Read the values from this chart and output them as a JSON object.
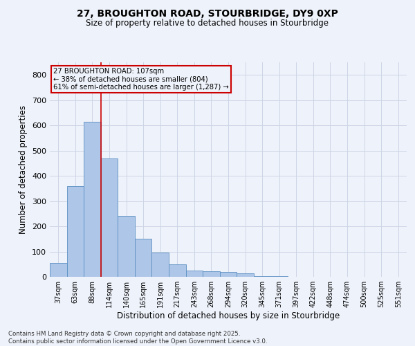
{
  "title_line1": "27, BROUGHTON ROAD, STOURBRIDGE, DY9 0XP",
  "title_line2": "Size of property relative to detached houses in Stourbridge",
  "xlabel": "Distribution of detached houses by size in Stourbridge",
  "ylabel": "Number of detached properties",
  "footnote": "Contains HM Land Registry data © Crown copyright and database right 2025.\nContains public sector information licensed under the Open Government Licence v3.0.",
  "categories": [
    "37sqm",
    "63sqm",
    "88sqm",
    "114sqm",
    "140sqm",
    "165sqm",
    "191sqm",
    "217sqm",
    "243sqm",
    "268sqm",
    "294sqm",
    "320sqm",
    "345sqm",
    "371sqm",
    "397sqm",
    "422sqm",
    "448sqm",
    "474sqm",
    "500sqm",
    "525sqm",
    "551sqm"
  ],
  "values": [
    55,
    360,
    615,
    470,
    240,
    150,
    95,
    50,
    25,
    22,
    20,
    13,
    4,
    2,
    1,
    1,
    0,
    0,
    0,
    0,
    0
  ],
  "bar_color": "#aec6e8",
  "bar_edge_color": "#5a8fc2",
  "grid_color": "#cdd5e5",
  "bg_color": "#eef2fa",
  "vline_x": 2.5,
  "vline_color": "#cc0000",
  "annotation_text": "27 BROUGHTON ROAD: 107sqm\n← 38% of detached houses are smaller (804)\n61% of semi-detached houses are larger (1,287) →",
  "annotation_box_color": "#cc0000",
  "ylim": [
    0,
    850
  ],
  "yticks": [
    0,
    100,
    200,
    300,
    400,
    500,
    600,
    700,
    800
  ]
}
